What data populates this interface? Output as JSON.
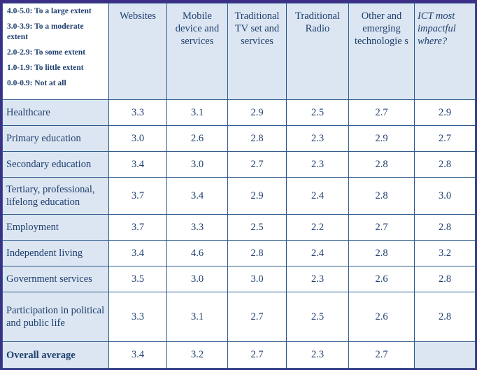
{
  "legend": [
    "4.0-5.0: To a large extent",
    "3.0-3.9: To a moderate extent",
    "2.0-2.9: To some extent",
    "1.0-1.9: To little extent",
    "0.0-0.9: Not at all"
  ],
  "columns": [
    "Websites",
    "Mobile device and services",
    "Traditional TV set and services",
    "Traditional Radio",
    "Other and emerging technologie s",
    "ICT most impactful where?"
  ],
  "rows": [
    {
      "label": "Healthcare",
      "values": [
        "3.3",
        "3.1",
        "2.9",
        "2.5",
        "2.7",
        "2.9"
      ]
    },
    {
      "label": "Primary education",
      "values": [
        "3.0",
        "2.6",
        "2.8",
        "2.3",
        "2.9",
        "2.7"
      ]
    },
    {
      "label": "Secondary education",
      "values": [
        "3.4",
        "3.0",
        "2.7",
        "2.3",
        "2.8",
        "2.8"
      ]
    },
    {
      "label": "Tertiary, professional, lifelong education",
      "values": [
        "3.7",
        "3.4",
        "2.9",
        "2.4",
        "2.8",
        "3.0"
      ]
    },
    {
      "label": "Employment",
      "values": [
        "3.7",
        "3.3",
        "2.5",
        "2.2",
        "2.7",
        "2.8"
      ]
    },
    {
      "label": "Independent living",
      "values": [
        "3.4",
        "4.6",
        "2.8",
        "2.4",
        "2.8",
        "3.2"
      ]
    },
    {
      "label": "Government services",
      "values": [
        "3.5",
        "3.0",
        "3.0",
        "2.3",
        "2.6",
        "2.8"
      ]
    },
    {
      "label": "Participation in political and public life",
      "values": [
        "3.3",
        "3.1",
        "2.7",
        "2.5",
        "2.6",
        "2.8"
      ]
    }
  ],
  "overall": {
    "label": "Overall average",
    "values": [
      "3.4",
      "3.2",
      "2.7",
      "2.3",
      "2.7"
    ]
  }
}
